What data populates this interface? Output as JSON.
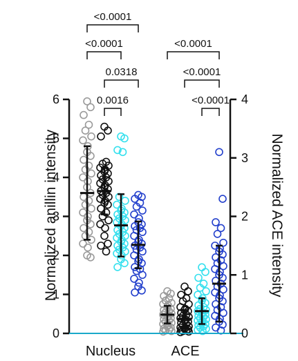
{
  "chart_data": {
    "type": "scatter",
    "subtype": "dot-plot-with-mean-sd",
    "categories": [
      "Nucleus",
      "ACE"
    ],
    "colors": [
      "#9a9a9a",
      "#111111",
      "#35e0ee",
      "#2340cc"
    ],
    "left_axis": {
      "label": "Normalized anillin intensity",
      "range": [
        0,
        6
      ],
      "ticks": [
        "0",
        "1",
        "2",
        "3",
        "4",
        "5",
        "6"
      ]
    },
    "right_axis": {
      "label": "Normalized ACE intensity",
      "range": [
        0,
        4
      ],
      "ticks": [
        "0",
        "1",
        "2",
        "3",
        "4"
      ]
    },
    "groups": [
      {
        "category": "Nucleus",
        "axis": "left",
        "series": [
          {
            "color": "#9a9a9a",
            "mean": 3.6,
            "sd": 1.2,
            "points": [
              5.95,
              5.8,
              5.6,
              5.35,
              5.2,
              5.05,
              4.95,
              4.8,
              4.65,
              4.55,
              4.45,
              4.3,
              4.2,
              4.1,
              4.0,
              3.9,
              3.75,
              3.6,
              3.5,
              3.4,
              3.3,
              3.2,
              3.1,
              3.0,
              2.9,
              2.8,
              2.7,
              2.6,
              2.5,
              2.4,
              2.3,
              2.2,
              2.0,
              1.95
            ]
          },
          {
            "color": "#111111",
            "mean": 3.65,
            "sd": 0.6,
            "points": [
              5.3,
              5.2,
              5.05,
              4.4,
              4.35,
              4.3,
              4.25,
              4.2,
              4.15,
              4.1,
              4.05,
              4.0,
              3.95,
              3.9,
              3.85,
              3.8,
              3.75,
              3.7,
              3.65,
              3.6,
              3.55,
              3.5,
              3.45,
              3.4,
              3.35,
              3.3,
              3.2,
              3.1,
              3.0,
              2.9,
              2.8,
              2.7,
              2.5,
              2.3,
              2.25,
              2.1
            ]
          },
          {
            "color": "#35e0ee",
            "mean": 2.77,
            "sd": 0.8,
            "points": [
              5.05,
              5.0,
              4.7,
              4.65,
              3.5,
              3.4,
              3.3,
              3.2,
              3.15,
              3.1,
              3.05,
              3.0,
              2.95,
              2.9,
              2.85,
              2.8,
              2.75,
              2.7,
              2.65,
              2.6,
              2.55,
              2.5,
              2.45,
              2.4,
              2.35,
              2.3,
              2.25,
              2.2,
              2.15,
              2.1,
              2.05,
              2.0,
              1.9,
              1.8,
              1.7
            ]
          },
          {
            "color": "#2340cc",
            "mean": 2.27,
            "sd": 0.6,
            "points": [
              3.55,
              3.5,
              3.45,
              3.35,
              3.25,
              3.15,
              3.05,
              2.95,
              2.85,
              2.8,
              2.75,
              2.7,
              2.65,
              2.6,
              2.5,
              2.4,
              2.35,
              2.3,
              2.25,
              2.2,
              2.15,
              2.1,
              2.0,
              1.9,
              1.85,
              1.8,
              1.7,
              1.65,
              1.6,
              1.5,
              1.4,
              1.3,
              1.2,
              1.1,
              1.05
            ]
          }
        ]
      },
      {
        "category": "ACE",
        "axis": "right",
        "series": [
          {
            "color": "#9a9a9a",
            "mean": 0.32,
            "sd": 0.15,
            "points": [
              0.72,
              0.68,
              0.64,
              0.6,
              0.56,
              0.52,
              0.5,
              0.48,
              0.45,
              0.42,
              0.4,
              0.38,
              0.36,
              0.34,
              0.32,
              0.3,
              0.28,
              0.26,
              0.24,
              0.22,
              0.2,
              0.18,
              0.16,
              0.14,
              0.12,
              0.1,
              0.08,
              0.06,
              0.05,
              0.04,
              0.03
            ]
          },
          {
            "color": "#111111",
            "mean": 0.25,
            "sd": 0.15,
            "points": [
              0.8,
              0.72,
              0.66,
              0.6,
              0.55,
              0.5,
              0.45,
              0.42,
              0.4,
              0.38,
              0.35,
              0.32,
              0.3,
              0.28,
              0.26,
              0.24,
              0.22,
              0.2,
              0.18,
              0.16,
              0.14,
              0.12,
              0.1,
              0.09,
              0.08,
              0.07,
              0.06,
              0.05,
              0.04,
              0.03,
              0.02
            ]
          },
          {
            "color": "#35e0ee",
            "mean": 0.38,
            "sd": 0.22,
            "points": [
              1.13,
              1.05,
              0.95,
              0.85,
              0.78,
              0.72,
              0.66,
              0.6,
              0.56,
              0.52,
              0.48,
              0.45,
              0.42,
              0.4,
              0.38,
              0.36,
              0.34,
              0.32,
              0.3,
              0.28,
              0.26,
              0.24,
              0.22,
              0.2,
              0.18,
              0.16,
              0.14,
              0.12,
              0.1,
              0.08,
              0.06,
              0.04
            ]
          },
          {
            "color": "#2340cc",
            "mean": 0.85,
            "sd": 0.65,
            "points": [
              3.1,
              2.3,
              1.9,
              1.8,
              1.7,
              1.55,
              1.5,
              1.45,
              1.4,
              1.35,
              1.3,
              1.25,
              1.2,
              1.15,
              1.1,
              1.05,
              1.0,
              0.95,
              0.9,
              0.85,
              0.8,
              0.75,
              0.7,
              0.65,
              0.6,
              0.55,
              0.5,
              0.45,
              0.4,
              0.35,
              0.3,
              0.25,
              0.2,
              0.15,
              0.1,
              0.05
            ]
          }
        ]
      }
    ],
    "comparisons": [
      {
        "category": "Nucleus",
        "groups": [
          1,
          4
        ],
        "p": "<0.0001"
      },
      {
        "category": "Nucleus",
        "groups": [
          1,
          3
        ],
        "p": "<0.0001"
      },
      {
        "category": "Nucleus",
        "groups": [
          2,
          4
        ],
        "p": "0.0318"
      },
      {
        "category": "Nucleus",
        "groups": [
          2,
          3
        ],
        "p": "0.0016"
      },
      {
        "category": "ACE",
        "groups": [
          1,
          4
        ],
        "p": "<0.0001"
      },
      {
        "category": "ACE",
        "groups": [
          2,
          4
        ],
        "p": "<0.0001"
      },
      {
        "category": "ACE",
        "groups": [
          3,
          4
        ],
        "p": "<0.0001"
      }
    ]
  }
}
